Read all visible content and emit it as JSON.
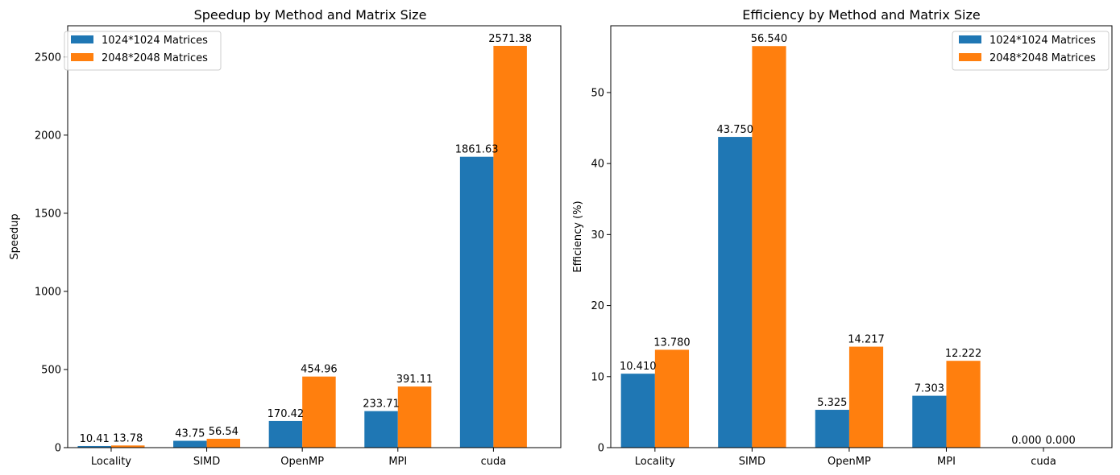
{
  "colors": {
    "series0": "#1f77b4",
    "series1": "#ff7f0e"
  },
  "chart_data": [
    {
      "type": "bar",
      "title": "Speedup by Method and Matrix Size",
      "xlabel": "",
      "ylabel": "Speedup",
      "categories": [
        "Locality",
        "SIMD",
        "OpenMP",
        "MPI",
        "cuda"
      ],
      "series": [
        {
          "name": "1024*1024 Matrices",
          "values": [
            10.41,
            43.75,
            170.42,
            233.71,
            1861.63
          ]
        },
        {
          "name": "2048*2048 Matrices",
          "values": [
            13.78,
            56.54,
            454.96,
            391.11,
            2571.38
          ]
        }
      ],
      "value_labels": [
        [
          "10.41",
          "43.75",
          "170.42",
          "233.71",
          "1861.63"
        ],
        [
          "13.78",
          "56.54",
          "454.96",
          "391.11",
          "2571.38"
        ]
      ],
      "ylim": [
        0,
        2700
      ],
      "yticks": [
        0,
        500,
        1000,
        1500,
        2000,
        2500
      ],
      "ytick_labels": [
        "0",
        "500",
        "1000",
        "1500",
        "2000",
        "2500"
      ],
      "legend": "top-left",
      "grid": false
    },
    {
      "type": "bar",
      "title": "Efficiency by Method and Matrix Size",
      "xlabel": "",
      "ylabel": "Efficiency (%)",
      "categories": [
        "Locality",
        "SIMD",
        "OpenMP",
        "MPI",
        "cuda"
      ],
      "series": [
        {
          "name": "1024*1024 Matrices",
          "values": [
            10.41,
            43.75,
            5.325,
            7.303,
            0.0
          ]
        },
        {
          "name": "2048*2048 Matrices",
          "values": [
            13.78,
            56.54,
            14.217,
            12.222,
            0.0
          ]
        }
      ],
      "value_labels": [
        [
          "10.410",
          "43.750",
          "5.325",
          "7.303",
          "0.000"
        ],
        [
          "13.780",
          "56.540",
          "14.217",
          "12.222",
          "0.000"
        ]
      ],
      "ylim": [
        0,
        59.4
      ],
      "yticks": [
        0,
        10,
        20,
        30,
        40,
        50
      ],
      "ytick_labels": [
        "0",
        "10",
        "20",
        "30",
        "40",
        "50"
      ],
      "legend": "top-right",
      "grid": false
    }
  ]
}
